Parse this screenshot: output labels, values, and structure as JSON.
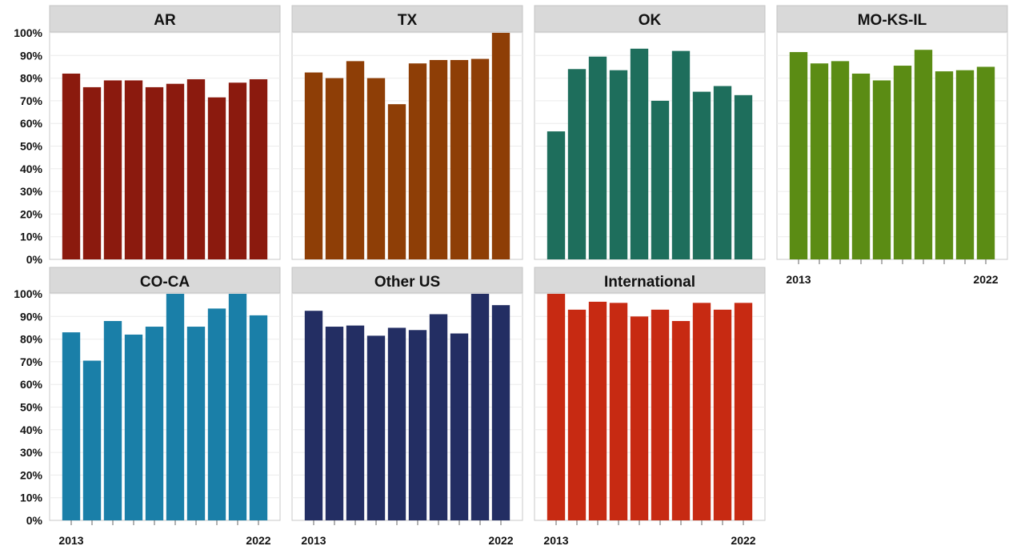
{
  "chart_data": {
    "type": "bar",
    "ylim": [
      0,
      100
    ],
    "y_tick_labels": [
      "0%",
      "10%",
      "20%",
      "30%",
      "40%",
      "50%",
      "60%",
      "70%",
      "80%",
      "90%",
      "100%"
    ],
    "x_first_label": "2013",
    "x_last_label": "2022",
    "categories": [
      "2013",
      "2014",
      "2015",
      "2016",
      "2017",
      "2018",
      "2019",
      "2020",
      "2021",
      "2022"
    ],
    "grid": true,
    "series": [
      {
        "name": "AR",
        "color": "#8B1A0E",
        "values": [
          82,
          76,
          79,
          79,
          76,
          77.5,
          79.5,
          71.5,
          78,
          79.5
        ]
      },
      {
        "name": "TX",
        "color": "#8E3E06",
        "values": [
          82.5,
          80,
          87.5,
          80,
          68.5,
          86.5,
          88,
          88,
          88.5,
          100
        ]
      },
      {
        "name": "OK",
        "color": "#1E6E5C",
        "values": [
          56.5,
          84,
          89.5,
          83.5,
          93,
          70,
          92,
          74,
          76.5,
          72.5
        ]
      },
      {
        "name": "MO-KS-IL",
        "color": "#5B8C14",
        "values": [
          91.5,
          86.5,
          87.5,
          82,
          79,
          85.5,
          92.5,
          83,
          83.5,
          85
        ]
      },
      {
        "name": "CO-CA",
        "color": "#1A7FA8",
        "values": [
          83,
          70.5,
          88,
          82,
          85.5,
          100,
          85.5,
          93.5,
          100,
          90.5
        ]
      },
      {
        "name": "Other US",
        "color": "#232E63",
        "values": [
          92.5,
          85.5,
          86,
          81.5,
          85,
          84,
          91,
          82.5,
          100,
          95
        ]
      },
      {
        "name": "International",
        "color": "#C72A12",
        "values": [
          100,
          93,
          96.5,
          96,
          90,
          93,
          88,
          96,
          93,
          96
        ]
      }
    ]
  }
}
